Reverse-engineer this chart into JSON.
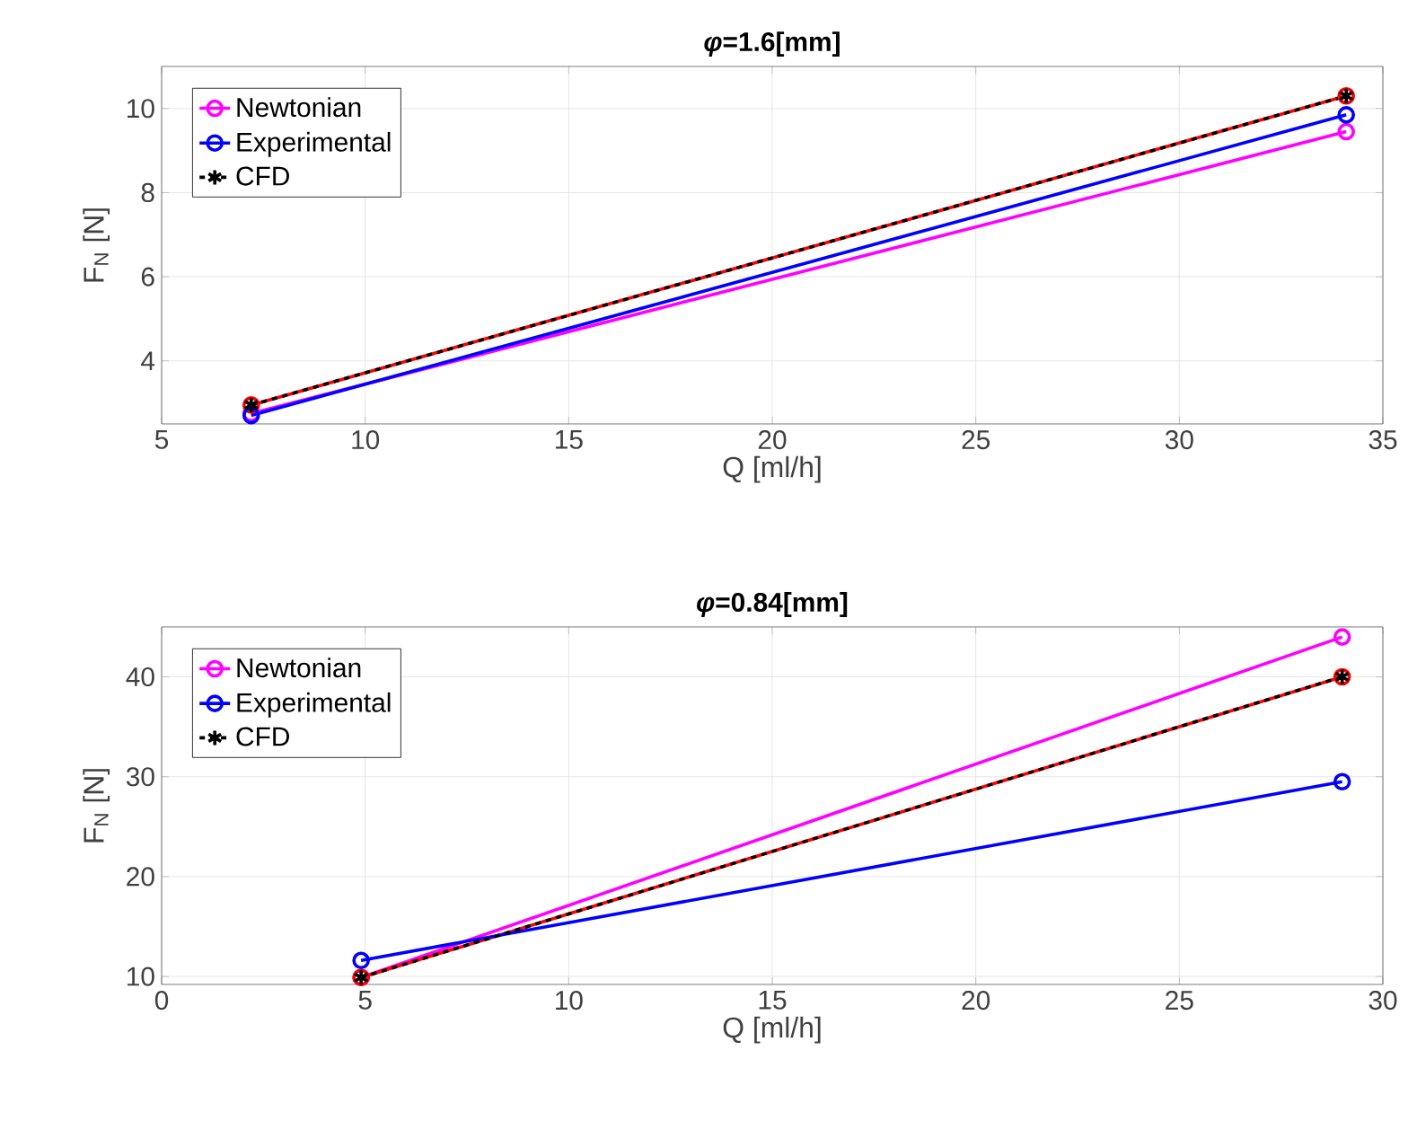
{
  "chart_data": [
    {
      "type": "line",
      "title": "*φ*=1.6[mm]",
      "xlabel": "Q [ml/h]",
      "ylabel": "F$_{N}$ [N]",
      "x": [
        7.2,
        34.1
      ],
      "xlim": [
        5,
        35
      ],
      "xticks": [
        5,
        10,
        15,
        20,
        25,
        30,
        35
      ],
      "ylim": [
        2.5,
        11
      ],
      "yticks": [
        4,
        6,
        8,
        10
      ],
      "grid": true,
      "legend": "top left",
      "marker": "circle",
      "line_style": "solid",
      "series": [
        {
          "name": "Newtonian",
          "color": "#ff00ff",
          "values": [
            2.75,
            9.45
          ]
        },
        {
          "color": "#ff0000",
          "values": [
            2.95,
            10.3
          ]
        },
        {
          "name": "Experimental",
          "color": "#0000ff",
          "values": [
            2.7,
            9.85
          ]
        },
        {
          "name": "CFD",
          "color": "#000000",
          "values": [
            2.95,
            10.3
          ],
          "marker": "cross",
          "line_style": "dashed"
        }
      ]
    },
    {
      "type": "line",
      "title": "*φ*=0.84[mm]",
      "xlabel": "Q [ml/h]",
      "ylabel": "F$_{N}$ [N]",
      "x": [
        4.9,
        29
      ],
      "xlim": [
        0,
        30
      ],
      "xticks": [
        0,
        5,
        10,
        15,
        20,
        25,
        30
      ],
      "ylim": [
        9.2,
        45
      ],
      "yticks": [
        10,
        20,
        30,
        40
      ],
      "grid": true,
      "legend": "top left",
      "marker": "circle",
      "line_style": "solid",
      "series": [
        {
          "name": "Newtonian",
          "color": "#ff00ff",
          "values": [
            9.9,
            44
          ]
        },
        {
          "color": "#ff0000",
          "values": [
            9.9,
            40
          ]
        },
        {
          "name": "Experimental",
          "color": "#0000ff",
          "values": [
            11.6,
            29.5
          ]
        },
        {
          "name": "CFD",
          "color": "#000000",
          "values": [
            9.9,
            40
          ],
          "marker": "cross",
          "line_style": "dashed"
        }
      ]
    }
  ]
}
